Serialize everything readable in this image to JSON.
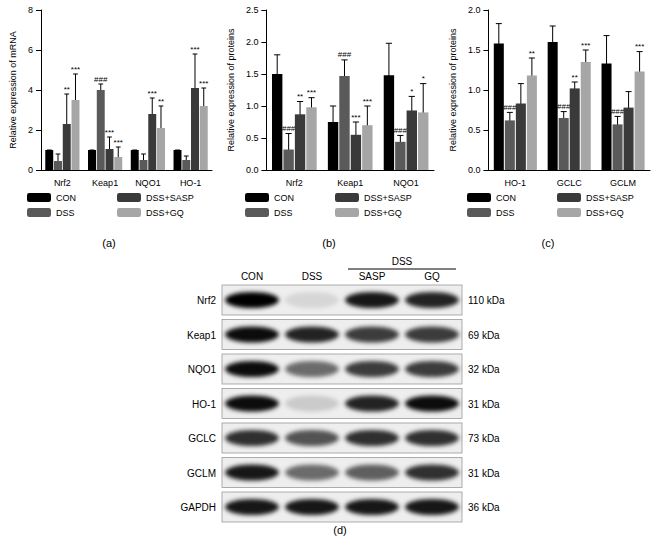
{
  "chart_data": [
    {
      "type": "bar",
      "caption": "(a)",
      "y_label": "Relative expression of mRNA",
      "categories": [
        "Nrf2",
        "Keap1",
        "NQO1",
        "HO-1"
      ],
      "ylim": [
        0,
        8
      ],
      "yticks": [
        0,
        2,
        4,
        6,
        8
      ],
      "grid": false,
      "legend": "bottom",
      "series": [
        {
          "name": "CON",
          "color": "#000000",
          "values": [
            1.0,
            1.0,
            1.0,
            1.0
          ],
          "errors": [
            0,
            0,
            0,
            0
          ],
          "marks": [
            null,
            null,
            null,
            null
          ]
        },
        {
          "name": "DSS",
          "color": "#5a5a5a",
          "values": [
            0.45,
            4.0,
            0.5,
            0.5
          ],
          "errors": [
            0.35,
            0.3,
            0.3,
            0.2
          ],
          "marks": [
            null,
            "###",
            null,
            null
          ]
        },
        {
          "name": "DSS+SASP",
          "color": "#3a3a3a",
          "values": [
            2.3,
            1.05,
            2.8,
            4.1
          ],
          "errors": [
            1.5,
            0.6,
            0.8,
            1.7
          ],
          "marks": [
            "**",
            "***",
            "***",
            "***"
          ]
        },
        {
          "name": "DSS+GQ",
          "color": "#a6a6a6",
          "values": [
            3.5,
            0.65,
            2.1,
            3.2
          ],
          "errors": [
            1.3,
            0.5,
            1.1,
            0.9
          ],
          "marks": [
            "***",
            "***",
            "**",
            "***"
          ]
        }
      ]
    },
    {
      "type": "bar",
      "caption": "(b)",
      "y_label": "Relative expression of proteins",
      "categories": [
        "Nrf2",
        "Keap1",
        "NQO1"
      ],
      "ylim": [
        0,
        2.5
      ],
      "yticks": [
        {
          "value": 0,
          "label": "0.0"
        },
        0.5,
        {
          "value": 1,
          "label": "1.0"
        },
        1.5,
        {
          "value": 2,
          "label": "2.0"
        },
        2.5
      ],
      "grid": false,
      "legend": "bottom",
      "series": [
        {
          "name": "CON",
          "color": "#000000",
          "values": [
            1.5,
            0.75,
            1.48
          ],
          "errors": [
            0.3,
            0.25,
            0.5
          ],
          "marks": [
            null,
            null,
            null
          ]
        },
        {
          "name": "DSS",
          "color": "#5a5a5a",
          "values": [
            0.32,
            1.47,
            0.44
          ],
          "errors": [
            0.25,
            0.25,
            0.1
          ],
          "marks": [
            "###",
            "###",
            "###"
          ]
        },
        {
          "name": "DSS+SASP",
          "color": "#3a3a3a",
          "values": [
            0.87,
            0.55,
            0.93
          ],
          "errors": [
            0.2,
            0.2,
            0.22
          ],
          "marks": [
            "**",
            "***",
            "*"
          ]
        },
        {
          "name": "DSS+GQ",
          "color": "#a6a6a6",
          "values": [
            0.98,
            0.7,
            0.9
          ],
          "errors": [
            0.15,
            0.3,
            0.45
          ],
          "marks": [
            "***",
            "***",
            "*"
          ]
        }
      ]
    },
    {
      "type": "bar",
      "caption": "(c)",
      "y_label": "Relative expression of proteins",
      "categories": [
        "HO-1",
        "GCLC",
        "GCLM"
      ],
      "ylim": [
        0,
        2
      ],
      "yticks": [
        {
          "value": 0,
          "label": "0.0"
        },
        0.5,
        {
          "value": 1,
          "label": "1.0"
        },
        1.5,
        {
          "value": 2,
          "label": "2.0"
        }
      ],
      "grid": false,
      "legend": "bottom",
      "series": [
        {
          "name": "CON",
          "color": "#000000",
          "values": [
            1.58,
            1.6,
            1.33
          ],
          "errors": [
            0.25,
            0.2,
            0.35
          ],
          "marks": [
            null,
            null,
            null
          ]
        },
        {
          "name": "DSS",
          "color": "#5a5a5a",
          "values": [
            0.62,
            0.65,
            0.57
          ],
          "errors": [
            0.1,
            0.08,
            0.1
          ],
          "marks": [
            "###",
            "###",
            "###"
          ]
        },
        {
          "name": "DSS+SASP",
          "color": "#3a3a3a",
          "values": [
            0.83,
            1.02,
            0.78
          ],
          "errors": [
            0.25,
            0.08,
            0.2
          ],
          "marks": [
            null,
            "**",
            null
          ]
        },
        {
          "name": "DSS+GQ",
          "color": "#a6a6a6",
          "values": [
            1.18,
            1.35,
            1.23
          ],
          "errors": [
            0.22,
            0.15,
            0.25
          ],
          "marks": [
            "**",
            "***",
            "***"
          ]
        }
      ]
    }
  ],
  "blot": {
    "caption": "(d)",
    "lanes": [
      "CON",
      "DSS",
      "SASP",
      "GQ"
    ],
    "group": {
      "label": "DSS",
      "lanes": [
        "SASP",
        "GQ"
      ]
    },
    "rows": [
      {
        "protein": "Nrf2",
        "size": "110 kDa",
        "intensity": [
          1.0,
          0.1,
          0.9,
          0.85
        ]
      },
      {
        "protein": "Keap1",
        "size": "69 kDa",
        "intensity": [
          0.95,
          0.85,
          0.75,
          0.75
        ]
      },
      {
        "protein": "NQO1",
        "size": "32 kDa",
        "intensity": [
          0.95,
          0.55,
          0.75,
          0.75
        ]
      },
      {
        "protein": "HO-1",
        "size": "31 kDa",
        "intensity": [
          0.95,
          0.15,
          0.85,
          0.95
        ]
      },
      {
        "protein": "GCLC",
        "size": "73 kDa",
        "intensity": [
          0.8,
          0.65,
          0.8,
          0.8
        ]
      },
      {
        "protein": "GCLM",
        "size": "31 kDa",
        "intensity": [
          0.9,
          0.55,
          0.6,
          0.8
        ]
      },
      {
        "protein": "GAPDH",
        "size": "36 kDa",
        "intensity": [
          0.9,
          0.9,
          0.9,
          0.9
        ]
      }
    ]
  }
}
